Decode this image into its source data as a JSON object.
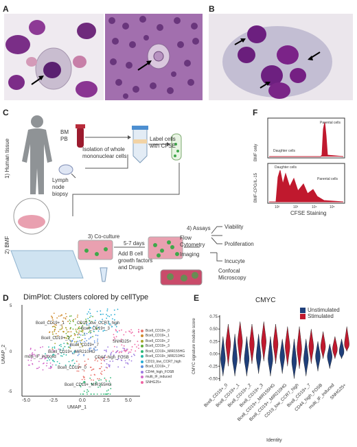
{
  "panels": {
    "A": "A",
    "B": "B",
    "C": "C",
    "D": "D",
    "E": "E",
    "F": "F"
  },
  "colors": {
    "cell_purple": "#6a2a7a",
    "smear_bg": "#c9b7cf",
    "unstimulated": "#1f3f7a",
    "stimulated": "#c0192e",
    "culture_pink": "#e9a0b0"
  },
  "workflow": {
    "human_tissue": "1) Human tissue",
    "bmf": "2) BMF",
    "bm_pb": "BM\nPB",
    "lymph_node": "Lymph\nnode\nbiopsy",
    "isolation": "Isolation of whole\nmononuclear cells",
    "label_cells": "Label cells\nwith CFSE",
    "coculture": "3) Co-culture",
    "days": "5-7 days",
    "add_factors": "Add B cell\ngrowth factors\nand Drugs",
    "assays": "4) Assays",
    "flow": "Flow\nCytometry",
    "imaging": "Imaging",
    "viability": "Viability",
    "proliferation": "Proliferation",
    "incucyte": "Incucyte",
    "confocal": "Confocal\nMicroscopy"
  },
  "panelF": {
    "top_ylabel": "BMF only",
    "bottom_ylabel": "BMF-CPG/IL-15",
    "parental": "Parental cells",
    "daughter": "Daughter cells",
    "xlabel": "CFSE Staining",
    "ticks": [
      "10²",
      "10³",
      "10⁴",
      "10⁵"
    ]
  },
  "panelD": {
    "title": "DimPlot: Clusters colored by cellType",
    "xlabel": "UMAP_1",
    "ylabel": "UMAP_2",
    "xticks": [
      "-5.0",
      "-2.5",
      "0.0",
      "2.5",
      "5.0"
    ],
    "yticks": [
      "5",
      "0",
      "-5"
    ],
    "cluster_labels": [
      "Bcell_CD19+_1",
      "CD19_low_CCR7_high",
      "Bcell_CD19+_3",
      "Bcell_CD19+_2",
      "Bcell_CD19+_7",
      "SNHG25+",
      "Bcell_CD19+_MIR210HG",
      "multi_IF_induced",
      "CD44_high_FOSB",
      "Bcell_CD19+_0",
      "Bcell_CD19+_MIR155HG"
    ],
    "legend": [
      {
        "label": "Bcell_CD19+_0",
        "color": "#e8736b"
      },
      {
        "label": "Bcell_CD19+_1",
        "color": "#d08a2c"
      },
      {
        "label": "Bcell_CD19+_2",
        "color": "#a7a52a"
      },
      {
        "label": "Bcell_CD19+_3",
        "color": "#5fae35"
      },
      {
        "label": "Bcell_CD19+_MIR155HG",
        "color": "#2bb673"
      },
      {
        "label": "Bcell_CD19+_MIR210HG",
        "color": "#25b8a6"
      },
      {
        "label": "CD19_low_CCR7_high",
        "color": "#22abd4"
      },
      {
        "label": "Bcell_CD19+_7",
        "color": "#5b8fe0"
      },
      {
        "label": "CD44_high_FOSB",
        "color": "#9b78e0"
      },
      {
        "label": "multi_IF_induced",
        "color": "#d267c9"
      },
      {
        "label": "SNHG25+",
        "color": "#ee63a2"
      }
    ]
  },
  "chart_data": {
    "type": "violin",
    "title": "CMYC",
    "xlabel": "Identity",
    "ylabel": "CMYC signature module score",
    "ylim": [
      -0.55,
      0.78
    ],
    "yticks": [
      "0.75",
      "0.50",
      "0.25",
      "0.00",
      "-0.25",
      "-0.50"
    ],
    "categories": [
      "Bcell_CD19+_0",
      "Bcell_CD19+_1",
      "Bcell_CD19+_2",
      "Bcell_CD19+_3",
      "Bcell_CD19+_MIR155HG",
      "Bcell_CD19+_MIR210HG",
      "CD19_low_CCR7_high",
      "Bcell_CD19+_7",
      "CD44_high_FOSB",
      "multi_IF_induced",
      "SNHG25+"
    ],
    "series": [
      {
        "name": "Unstimulated",
        "color": "#1f3f7a",
        "ranges": [
          [
            -0.45,
            0.35
          ],
          [
            -0.45,
            0.4
          ],
          [
            -0.45,
            0.35
          ],
          [
            -0.4,
            0.4
          ],
          [
            -0.45,
            0.35
          ],
          [
            -0.4,
            0.3
          ],
          [
            -0.5,
            0.3
          ],
          [
            -0.45,
            0.3
          ],
          [
            -0.35,
            0.25
          ],
          [
            -0.3,
            0.2
          ],
          [
            -0.1,
            0.3
          ]
        ],
        "medians": [
          -0.1,
          -0.1,
          -0.1,
          -0.05,
          -0.1,
          -0.05,
          -0.15,
          -0.1,
          -0.05,
          -0.05,
          0.05
        ]
      },
      {
        "name": "Stimulated",
        "color": "#c0192e",
        "ranges": [
          [
            -0.25,
            0.6
          ],
          [
            -0.2,
            0.65
          ],
          [
            -0.2,
            0.6
          ],
          [
            -0.15,
            0.65
          ],
          [
            -0.2,
            0.6
          ],
          [
            -0.25,
            0.55
          ],
          [
            -0.3,
            0.55
          ],
          [
            -0.2,
            0.5
          ],
          [
            -0.1,
            0.45
          ],
          [
            -0.1,
            0.35
          ],
          [
            0.05,
            0.55
          ]
        ],
        "medians": [
          0.2,
          0.25,
          0.2,
          0.25,
          0.2,
          0.15,
          0.1,
          0.15,
          0.15,
          0.1,
          0.2
        ]
      }
    ]
  }
}
